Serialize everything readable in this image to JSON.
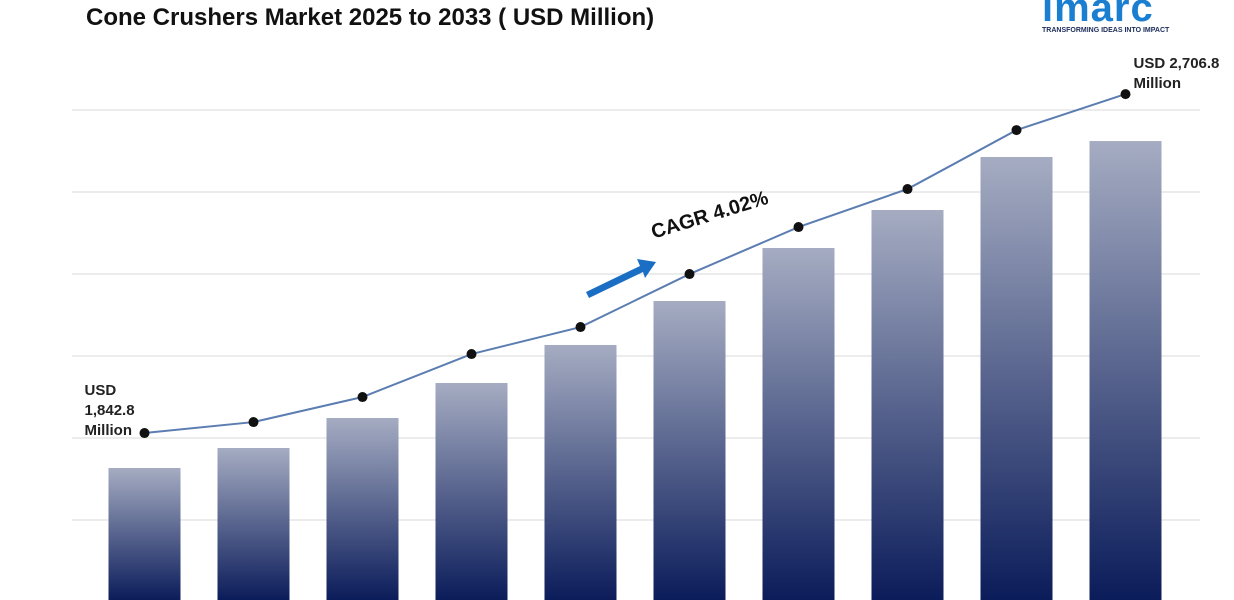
{
  "chart_data": {
    "type": "bar-line",
    "title": "Cone Crushers Market 2025 to 2033 ( USD Million)",
    "logo": "imarc",
    "tagline": "TRANSFORMING IDEAS INTO IMPACT",
    "annotation": "CAGR  4.02%",
    "series": [
      {
        "type": "bar",
        "values": [
          1753.7,
          1804.7,
          1881.2,
          1970.4,
          2067.3,
          2179.4,
          2314.5,
          2411.4,
          2546.5,
          2587.2
        ]
      },
      {
        "type": "line",
        "color": "#5b7db1",
        "values": [
          1842.8,
          1870.8,
          1934.6,
          2044.2,
          2113.0,
          2248.1,
          2367.9,
          2464.8,
          2615.1,
          2706.8
        ],
        "value_labels": [
          "USD 1,842.8 Million",
          null,
          null,
          null,
          null,
          null,
          null,
          null,
          null,
          "USD 2,706.8 Million"
        ]
      }
    ],
    "ylim": [
      1417.2,
      2946.7
    ],
    "gridlines": [
      1621.2,
      1830.2,
      2039.2,
      2248.2,
      2457.2,
      2666.3
    ],
    "grid": true
  }
}
